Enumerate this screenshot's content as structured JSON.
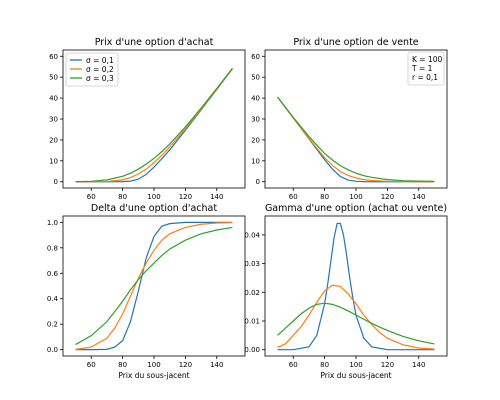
{
  "colors": {
    "s1": "#1f77b4",
    "s2": "#ff7f0e",
    "s3": "#2ca02c"
  },
  "legend": [
    "σ = 0,1",
    "σ = 0,2",
    "σ = 0,3"
  ],
  "params_box": [
    "K = 100",
    "T = 1",
    "r = 0,1"
  ],
  "chart_data": [
    {
      "type": "line",
      "title": "Prix d'une option d'achat",
      "xlabel": "",
      "ylabel": "",
      "xlim": [
        42,
        158
      ],
      "ylim": [
        -3,
        63
      ],
      "xticks": [
        60,
        80,
        100,
        120,
        140
      ],
      "yticks": [
        0,
        10,
        20,
        30,
        40,
        50,
        60
      ],
      "ytick_labels": [
        "0",
        "10",
        "20",
        "30",
        "40",
        "50",
        "60"
      ],
      "legend": "top-left",
      "series": [
        {
          "name": "σ = 0,1",
          "x": [
            50,
            60,
            70,
            80,
            85,
            90,
            95,
            100,
            105,
            110,
            120,
            130,
            140,
            150
          ],
          "y": [
            0,
            0,
            0,
            0.05,
            0.3,
            1.2,
            3.5,
            7.0,
            11.0,
            15.2,
            24.6,
            34.3,
            44.1,
            54.0
          ]
        },
        {
          "name": "σ = 0,2",
          "x": [
            50,
            60,
            70,
            80,
            85,
            90,
            95,
            100,
            105,
            110,
            120,
            130,
            140,
            150
          ],
          "y": [
            0,
            0,
            0.1,
            0.9,
            2.0,
            3.7,
            6.0,
            9.2,
            12.6,
            16.6,
            25.3,
            34.6,
            44.2,
            54.1
          ]
        },
        {
          "name": "σ = 0,3",
          "x": [
            50,
            60,
            70,
            80,
            85,
            90,
            95,
            100,
            105,
            110,
            120,
            130,
            140,
            150
          ],
          "y": [
            0,
            0.2,
            0.9,
            2.6,
            4.1,
            6.0,
            8.4,
            11.2,
            14.4,
            18.0,
            26.2,
            35.2,
            44.6,
            54.3
          ]
        }
      ]
    },
    {
      "type": "line",
      "title": "Prix d'une option de vente",
      "xlabel": "",
      "ylabel": "",
      "xlim": [
        42,
        158
      ],
      "ylim": [
        -3,
        63
      ],
      "xticks": [
        60,
        80,
        100,
        120,
        140
      ],
      "yticks": [
        0,
        10,
        20,
        30,
        40,
        50,
        60
      ],
      "ytick_labels": [
        "0",
        "10",
        "20",
        "30",
        "40",
        "50",
        "60"
      ],
      "series": [
        {
          "name": "σ = 0,1",
          "x": [
            50,
            60,
            70,
            80,
            85,
            90,
            95,
            100,
            105,
            110,
            120,
            130,
            140,
            150
          ],
          "y": [
            40.5,
            30.5,
            20.5,
            10.5,
            6.0,
            2.5,
            0.8,
            0.2,
            0.05,
            0,
            0,
            0,
            0,
            0
          ]
        },
        {
          "name": "σ = 0,2",
          "x": [
            50,
            60,
            70,
            80,
            85,
            90,
            95,
            100,
            105,
            110,
            120,
            130,
            140,
            150
          ],
          "y": [
            40.5,
            30.5,
            20.7,
            11.5,
            7.8,
            4.9,
            3.0,
            1.8,
            1.0,
            0.6,
            0.2,
            0.05,
            0,
            0
          ]
        },
        {
          "name": "σ = 0,3",
          "x": [
            50,
            60,
            70,
            80,
            85,
            90,
            95,
            100,
            105,
            110,
            120,
            130,
            140,
            150
          ],
          "y": [
            40.5,
            30.8,
            21.6,
            13.5,
            10.4,
            7.7,
            5.7,
            4.1,
            2.9,
            2.1,
            1.0,
            0.5,
            0.3,
            0.2
          ]
        }
      ]
    },
    {
      "type": "line",
      "title": "Delta d'une option d'achat",
      "xlabel": "Prix du sous-jacent",
      "ylabel": "",
      "xlim": [
        42,
        158
      ],
      "ylim": [
        -0.05,
        1.05
      ],
      "xticks": [
        60,
        80,
        100,
        120,
        140
      ],
      "yticks": [
        0,
        0.2,
        0.4,
        0.6,
        0.8,
        1.0
      ],
      "ytick_labels": [
        "0.0",
        "0.2",
        "0.4",
        "0.6",
        "0.8",
        "1.0"
      ],
      "series": [
        {
          "name": "σ = 0,1",
          "x": [
            50,
            60,
            70,
            75,
            80,
            85,
            90,
            95,
            100,
            105,
            110,
            120,
            130,
            140,
            150
          ],
          "y": [
            0,
            0,
            0.002,
            0.02,
            0.07,
            0.22,
            0.46,
            0.72,
            0.89,
            0.97,
            0.99,
            1.0,
            1.0,
            1.0,
            1.0
          ]
        },
        {
          "name": "σ = 0,2",
          "x": [
            50,
            60,
            70,
            75,
            80,
            85,
            90,
            95,
            100,
            105,
            110,
            120,
            130,
            140,
            150
          ],
          "y": [
            0.002,
            0.02,
            0.09,
            0.17,
            0.28,
            0.42,
            0.56,
            0.68,
            0.78,
            0.86,
            0.91,
            0.96,
            0.985,
            0.995,
            0.998
          ]
        },
        {
          "name": "σ = 0,3",
          "x": [
            50,
            60,
            70,
            75,
            80,
            85,
            90,
            95,
            100,
            105,
            110,
            120,
            130,
            140,
            150
          ],
          "y": [
            0.04,
            0.11,
            0.22,
            0.3,
            0.38,
            0.47,
            0.55,
            0.62,
            0.68,
            0.74,
            0.79,
            0.86,
            0.91,
            0.94,
            0.96
          ]
        }
      ]
    },
    {
      "type": "line",
      "title": "Gamma d'une option (achat ou vente)",
      "xlabel": "Prix du sous-jacent",
      "ylabel": "",
      "xlim": [
        42,
        158
      ],
      "ylim": [
        -0.0022,
        0.0466
      ],
      "xticks": [
        60,
        80,
        100,
        120,
        140
      ],
      "yticks": [
        0,
        0.01,
        0.02,
        0.03,
        0.04
      ],
      "ytick_labels": [
        "0.00",
        "0.01",
        "0.02",
        "0.03",
        "0.04"
      ],
      "series": [
        {
          "name": "σ = 0,1",
          "x": [
            50,
            60,
            70,
            75,
            80,
            82,
            84,
            86,
            88,
            90,
            92,
            94,
            96,
            98,
            100,
            105,
            110,
            120,
            130,
            140,
            150
          ],
          "y": [
            0,
            0,
            0.001,
            0.005,
            0.016,
            0.023,
            0.031,
            0.039,
            0.044,
            0.044,
            0.04,
            0.033,
            0.025,
            0.018,
            0.012,
            0.004,
            0.001,
            0,
            0,
            0,
            0
          ]
        },
        {
          "name": "σ = 0,2",
          "x": [
            50,
            55,
            60,
            65,
            70,
            75,
            80,
            85,
            90,
            95,
            100,
            105,
            110,
            115,
            120,
            130,
            140,
            150
          ],
          "y": [
            0.0008,
            0.002,
            0.005,
            0.008,
            0.012,
            0.0165,
            0.0205,
            0.0225,
            0.022,
            0.0195,
            0.016,
            0.012,
            0.0088,
            0.006,
            0.004,
            0.0017,
            0.0006,
            0.0002
          ]
        },
        {
          "name": "σ = 0,3",
          "x": [
            50,
            55,
            60,
            65,
            70,
            75,
            80,
            85,
            90,
            95,
            100,
            105,
            110,
            115,
            120,
            130,
            140,
            150
          ],
          "y": [
            0.005,
            0.0075,
            0.01,
            0.0125,
            0.0145,
            0.0158,
            0.0162,
            0.0158,
            0.0148,
            0.0135,
            0.0121,
            0.0106,
            0.0092,
            0.0079,
            0.0067,
            0.0046,
            0.0031,
            0.002
          ]
        }
      ]
    }
  ]
}
